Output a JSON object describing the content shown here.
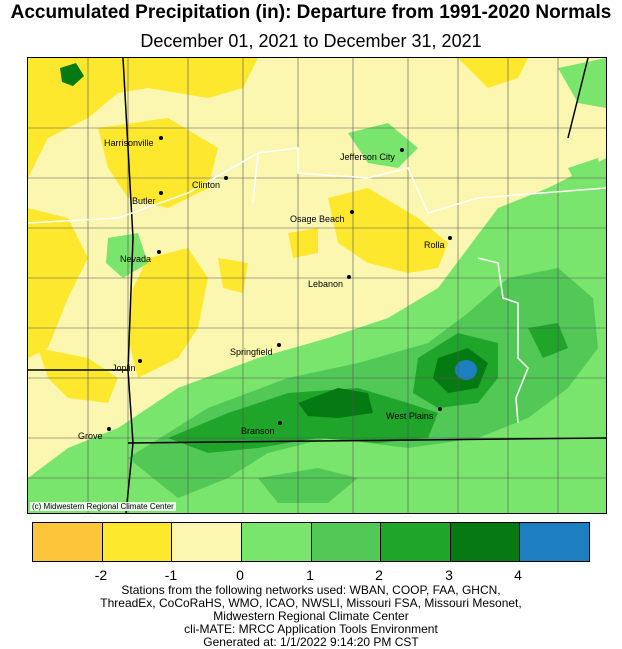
{
  "title": "Accumulated Precipitation (in): Departure from 1991-2020 Normals",
  "subtitle": "December 01, 2021 to December 31, 2021",
  "credit": "(c) Midwestern Regional Climate Center",
  "cities": [
    {
      "name": "Harrisonville"
    },
    {
      "name": "Jefferson City"
    },
    {
      "name": "Clinton"
    },
    {
      "name": "Butler"
    },
    {
      "name": "Osage Beach"
    },
    {
      "name": "Rolla"
    },
    {
      "name": "Nevada"
    },
    {
      "name": "Lebanon"
    },
    {
      "name": "Springfield"
    },
    {
      "name": "Joplin"
    },
    {
      "name": "West Plains"
    },
    {
      "name": "Branson"
    },
    {
      "name": "Grove"
    }
  ],
  "legend": {
    "colors": [
      "#fdc53a",
      "#fde82e",
      "#fbf7b0",
      "#7ae56c",
      "#52c857",
      "#1fa52a",
      "#067a12",
      "#1d7fbf"
    ],
    "labels": [
      "-2",
      "-1",
      "0",
      "1",
      "2",
      "3",
      "4"
    ]
  },
  "colors": {
    "dry2": "#fdc53a",
    "dry1": "#fde82e",
    "normal": "#fbf7b0",
    "wet1": "#7ae56c",
    "wet2": "#52c857",
    "wet3": "#1fa52a",
    "wet4": "#067a12",
    "wet5": "#1d7fbf"
  },
  "footer": {
    "line1": "Stations from the following networks used: WBAN, COOP, FAA, GHCN,",
    "line2": "ThreadEx, CoCoRaHS, WMO, ICAO, NWSLI, Missouri FSA, Missouri Mesonet,",
    "line3": "Midwestern Regional Climate Center",
    "line4": "cli-MATE: MRCC Application Tools Environment",
    "line5": "Generated at: 1/1/2022 9:14:20 PM CST"
  }
}
